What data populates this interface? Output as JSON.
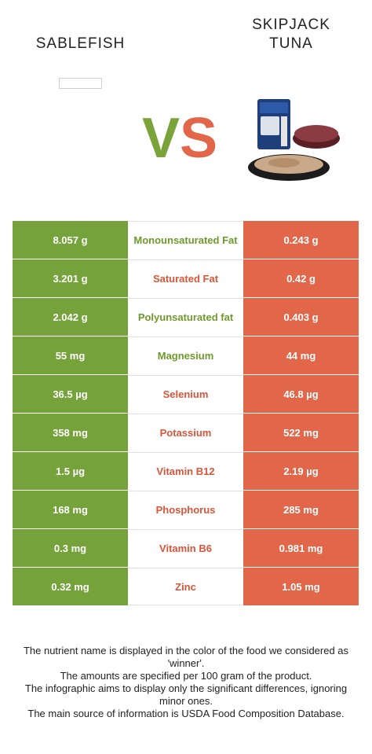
{
  "header": {
    "left_food": "SABLEFISH",
    "right_food": "SKIPJACK TUNA",
    "vs_v": "V",
    "vs_s": "S"
  },
  "colors": {
    "left": "#76a23b",
    "right": "#e2674a"
  },
  "rows": [
    {
      "left": "8.057 g",
      "nutrient": "Monounsaturated Fat",
      "right": "0.243 g",
      "winner": "left"
    },
    {
      "left": "3.201 g",
      "nutrient": "Saturated Fat",
      "right": "0.42 g",
      "winner": "right"
    },
    {
      "left": "2.042 g",
      "nutrient": "Polyunsaturated fat",
      "right": "0.403 g",
      "winner": "left"
    },
    {
      "left": "55 mg",
      "nutrient": "Magnesium",
      "right": "44 mg",
      "winner": "left"
    },
    {
      "left": "36.5 µg",
      "nutrient": "Selenium",
      "right": "46.8 µg",
      "winner": "right"
    },
    {
      "left": "358 mg",
      "nutrient": "Potassium",
      "right": "522 mg",
      "winner": "right"
    },
    {
      "left": "1.5 µg",
      "nutrient": "Vitamin B12",
      "right": "2.19 µg",
      "winner": "right"
    },
    {
      "left": "168 mg",
      "nutrient": "Phosphorus",
      "right": "285 mg",
      "winner": "right"
    },
    {
      "left": "0.3 mg",
      "nutrient": "Vitamin B6",
      "right": "0.981 mg",
      "winner": "right"
    },
    {
      "left": "0.32 mg",
      "nutrient": "Zinc",
      "right": "1.05 mg",
      "winner": "right"
    }
  ],
  "footnote": [
    "The nutrient name is displayed in the color of the food we considered as 'winner'.",
    "The amounts are specified per 100 gram of the product.",
    "The infographic aims to display only the significant differences, ignoring minor ones.",
    "The main source of information is USDA Food Composition Database."
  ]
}
